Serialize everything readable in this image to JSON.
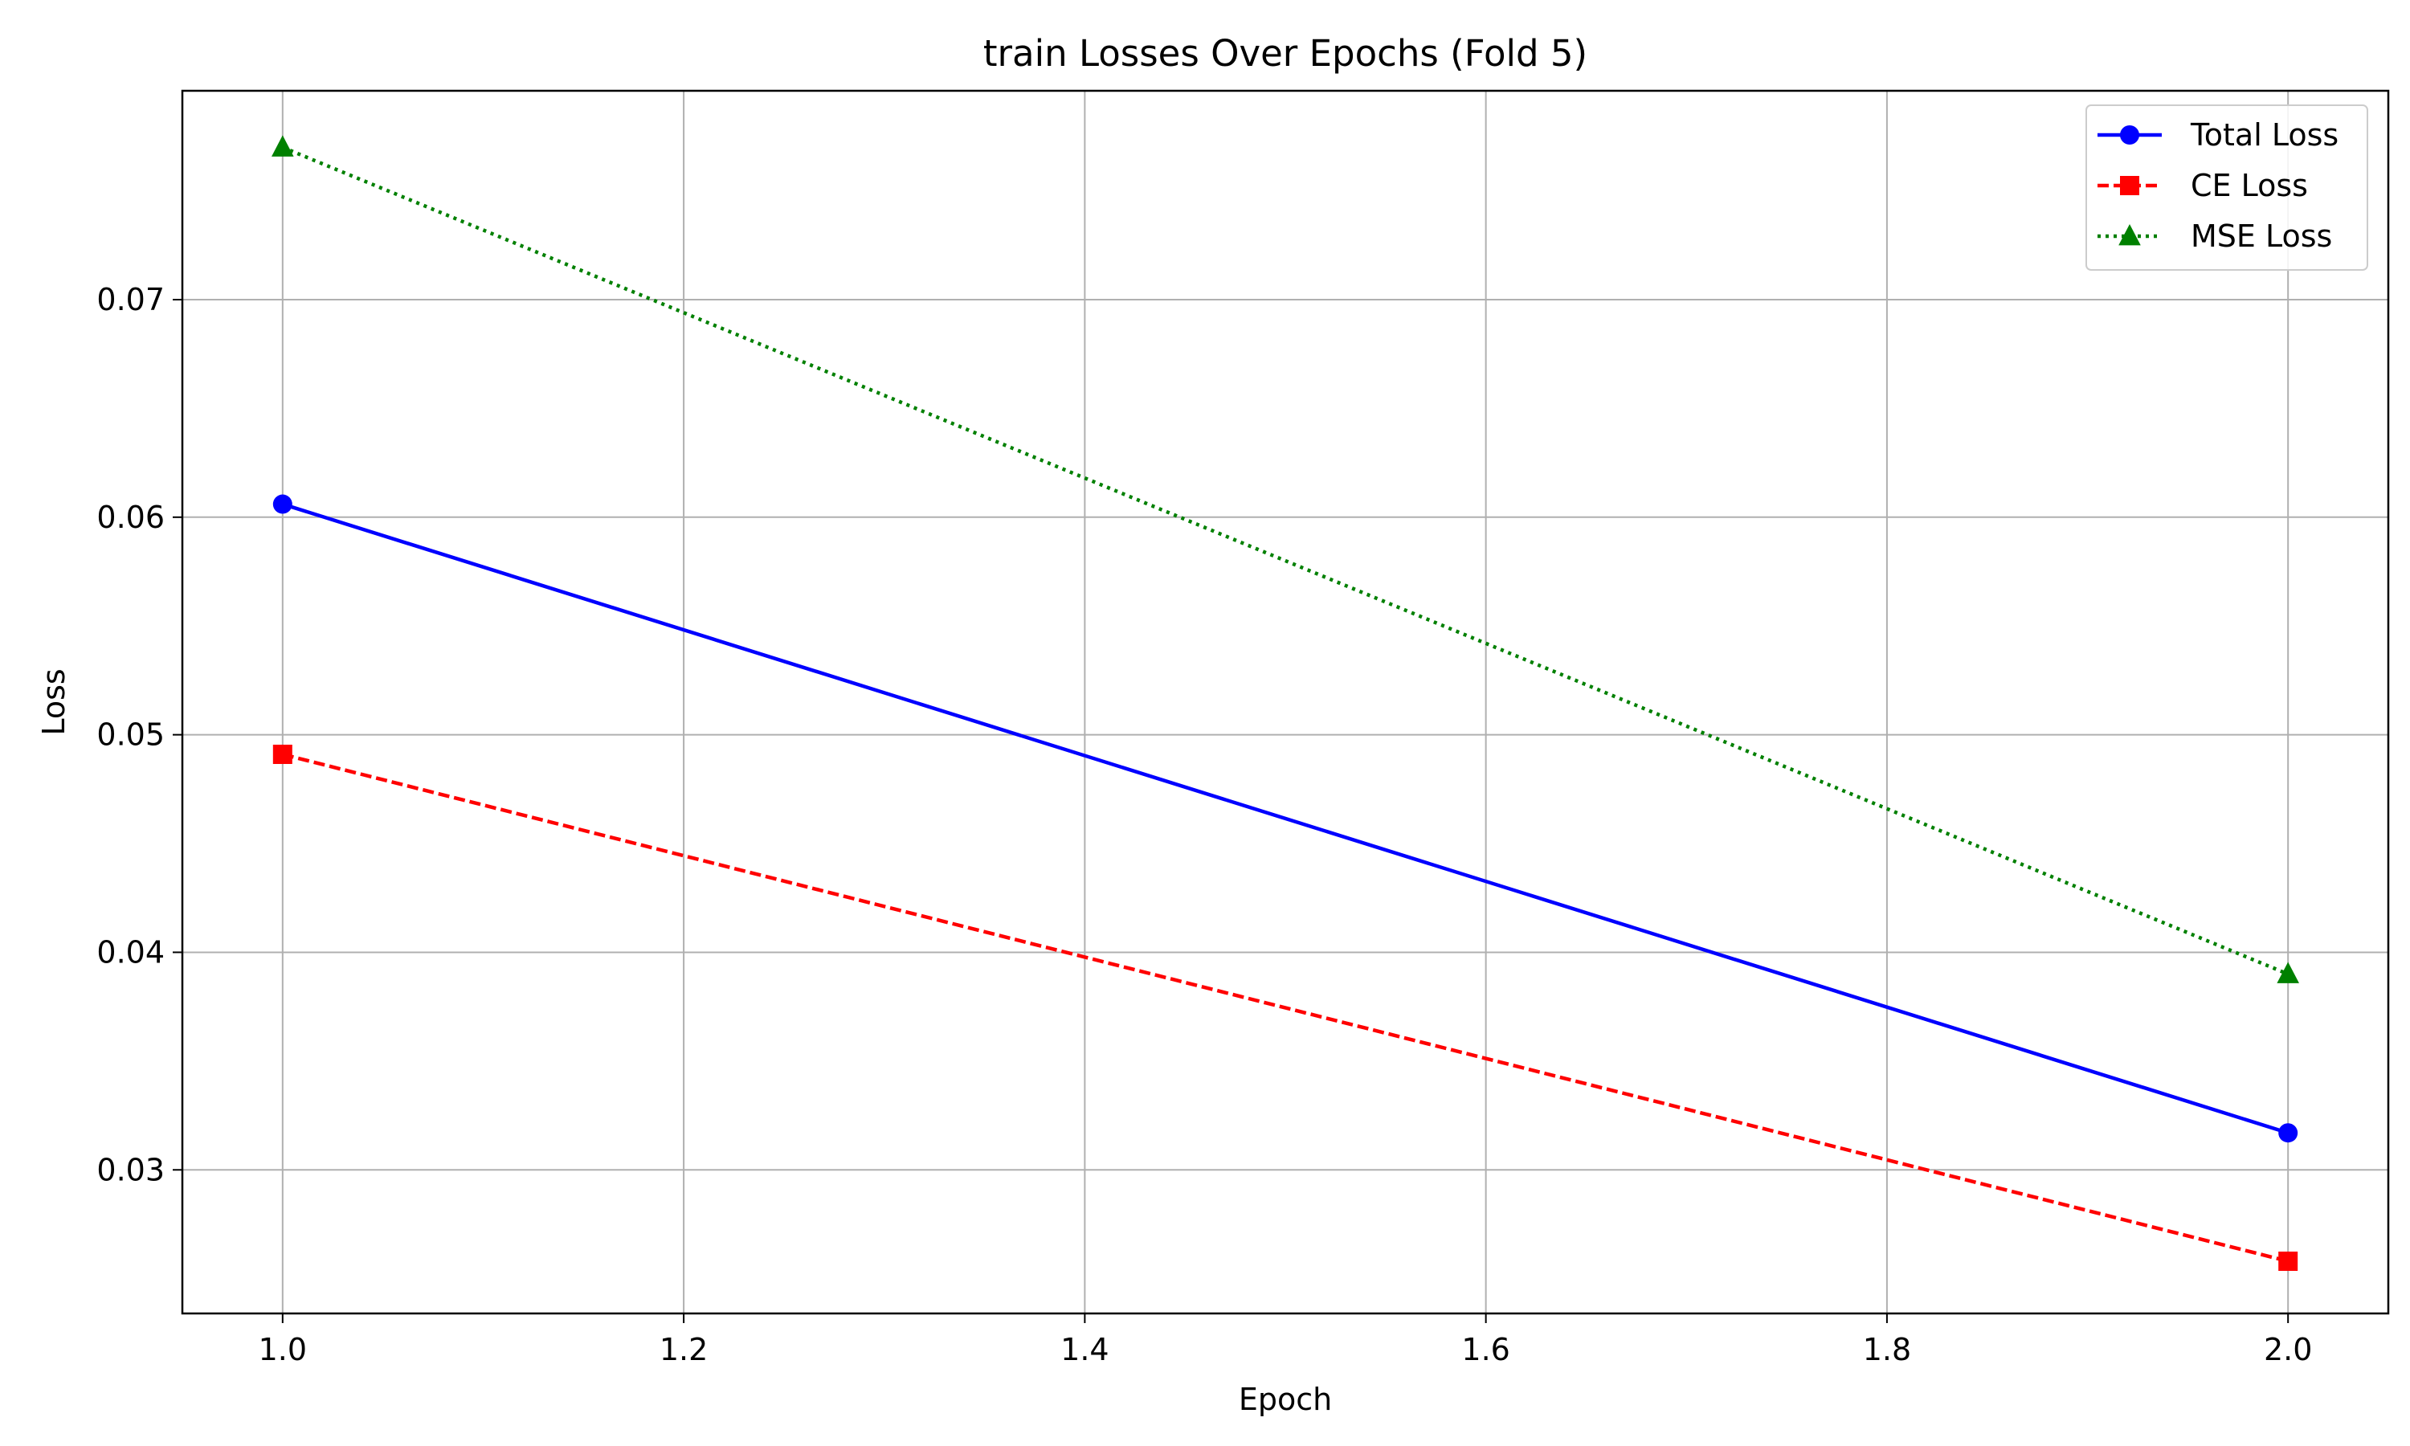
{
  "chart_data": {
    "type": "line",
    "title": "train Losses Over Epochs (Fold 5)",
    "xlabel": "Epoch",
    "ylabel": "Loss",
    "xlim": [
      0.95,
      2.05
    ],
    "ylim": [
      0.0234,
      0.0796
    ],
    "x_ticks": [
      1.0,
      1.2,
      1.4,
      1.6,
      1.8,
      2.0
    ],
    "x_tick_labels": [
      "1.0",
      "1.2",
      "1.4",
      "1.6",
      "1.8",
      "2.0"
    ],
    "y_ticks": [
      0.03,
      0.04,
      0.05,
      0.06,
      0.07
    ],
    "y_tick_labels": [
      "0.03",
      "0.04",
      "0.05",
      "0.06",
      "0.07"
    ],
    "grid": true,
    "legend_position": "top-right",
    "x": [
      1.0,
      2.0
    ],
    "series": [
      {
        "name": "Total Loss",
        "values": [
          0.0606,
          0.0317
        ],
        "color": "#0000ff",
        "line_style": "solid",
        "marker": "circle"
      },
      {
        "name": "CE Loss",
        "values": [
          0.0491,
          0.0258
        ],
        "color": "#ff0000",
        "line_style": "dashed",
        "marker": "square"
      },
      {
        "name": "MSE Loss",
        "values": [
          0.077,
          0.039
        ],
        "color": "#008000",
        "line_style": "dotted",
        "marker": "triangle"
      }
    ]
  }
}
